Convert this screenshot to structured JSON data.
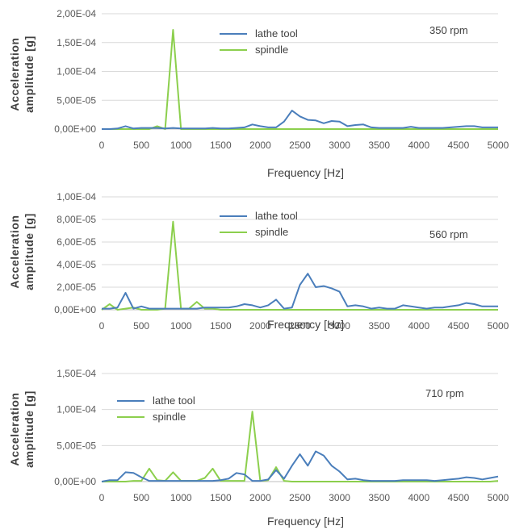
{
  "colors": {
    "lathe_tool": "#4a7ebb",
    "spindle": "#8ccf4d",
    "grid": "#d9d9d9",
    "axis": "#bfbfbf"
  },
  "chart_data": [
    {
      "type": "line",
      "annotation": "350 rpm",
      "xlabel": "Frequency [Hz]",
      "ylabel_line1": "Acceleration",
      "ylabel_line2": "amplitude [g]",
      "xlim": [
        0,
        5000
      ],
      "ylim": [
        0,
        0.0002
      ],
      "xticks": [
        "0",
        "500",
        "1000",
        "1500",
        "2000",
        "2500",
        "3000",
        "3500",
        "4000",
        "4500",
        "5000"
      ],
      "yticks": [
        "0,00E+00",
        "5,00E-05",
        "1,00E-04",
        "1,50E-04",
        "2,00E-04"
      ],
      "legend": {
        "position": "top-center",
        "entries": [
          "lathe tool",
          "spindle"
        ]
      },
      "series": [
        {
          "name": "lathe tool",
          "color": "#4a7ebb",
          "x": [
            0,
            100,
            200,
            300,
            400,
            500,
            600,
            700,
            800,
            900,
            1000,
            1100,
            1200,
            1300,
            1400,
            1500,
            1600,
            1700,
            1800,
            1900,
            2000,
            2100,
            2200,
            2300,
            2400,
            2500,
            2600,
            2700,
            2800,
            2900,
            3000,
            3100,
            3200,
            3300,
            3400,
            3500,
            3600,
            3700,
            3800,
            3900,
            4000,
            4100,
            4200,
            4300,
            4400,
            4500,
            4600,
            4700,
            4800,
            4900,
            5000
          ],
          "y": [
            0,
            0,
            1e-06,
            5e-06,
            1e-06,
            2e-06,
            2e-06,
            2e-06,
            1e-06,
            2e-06,
            1e-06,
            1e-06,
            1e-06,
            1e-06,
            2e-06,
            1e-06,
            1e-06,
            2e-06,
            3e-06,
            8e-06,
            5e-06,
            3e-06,
            3e-06,
            1.3e-05,
            3.2e-05,
            2.2e-05,
            1.6e-05,
            1.5e-05,
            1e-05,
            1.4e-05,
            1.3e-05,
            5e-06,
            7e-06,
            8e-06,
            3e-06,
            2e-06,
            2e-06,
            2e-06,
            2e-06,
            4e-06,
            2e-06,
            2e-06,
            2e-06,
            2e-06,
            3e-06,
            4e-06,
            5e-06,
            5e-06,
            3e-06,
            3e-06,
            3e-06
          ]
        },
        {
          "name": "spindle",
          "color": "#8ccf4d",
          "x": [
            0,
            100,
            200,
            300,
            400,
            500,
            600,
            700,
            800,
            900,
            1000,
            1100,
            1200,
            1300,
            1400,
            1500,
            1600,
            1700,
            1800,
            1900,
            2000,
            2100,
            2200,
            2300,
            2400,
            2500,
            2600,
            2700,
            2800,
            2900,
            3000,
            3100,
            3200,
            3300,
            3400,
            3500,
            3600,
            3700,
            3800,
            3900,
            4000,
            4100,
            4200,
            4300,
            4400,
            4500,
            4600,
            4700,
            4800,
            4900,
            5000
          ],
          "y": [
            0,
            0,
            0,
            0,
            0,
            0,
            0,
            5e-06,
            0,
            0.000172,
            0,
            0,
            0,
            0,
            0,
            0,
            0,
            0,
            0,
            0,
            0,
            0,
            0,
            0,
            0,
            0,
            0,
            0,
            0,
            0,
            0,
            0,
            0,
            0,
            0,
            0,
            0,
            0,
            0,
            0,
            0,
            0,
            0,
            0,
            0,
            0,
            0,
            0,
            0,
            0,
            0
          ]
        }
      ]
    },
    {
      "type": "line",
      "annotation": "560 rpm",
      "xlabel": "Frequency [Hz]",
      "ylabel_line1": "Acceleration",
      "ylabel_line2": "amplitude [g]",
      "xlim": [
        0,
        5000
      ],
      "ylim": [
        0,
        0.0001
      ],
      "xticks": [
        "0",
        "500",
        "1000",
        "1500",
        "2000",
        "2500",
        "3000",
        "3500",
        "4000",
        "4500",
        "5000"
      ],
      "yticks": [
        "0,00E+00",
        "2,00E-05",
        "4,00E-05",
        "6,00E-05",
        "8,00E-05",
        "1,00E-04"
      ],
      "legend": {
        "position": "top-center",
        "entries": [
          "lathe tool",
          "spindle"
        ]
      },
      "series": [
        {
          "name": "lathe tool",
          "color": "#4a7ebb",
          "x": [
            0,
            100,
            200,
            300,
            400,
            500,
            600,
            700,
            800,
            900,
            1000,
            1100,
            1200,
            1300,
            1400,
            1500,
            1600,
            1700,
            1800,
            1900,
            2000,
            2100,
            2200,
            2300,
            2400,
            2500,
            2600,
            2700,
            2800,
            2900,
            3000,
            3100,
            3200,
            3300,
            3400,
            3500,
            3600,
            3700,
            3800,
            3900,
            4000,
            4100,
            4200,
            4300,
            4400,
            4500,
            4600,
            4700,
            4800,
            4900,
            5000
          ],
          "y": [
            1e-06,
            1e-06,
            2e-06,
            1.5e-05,
            1e-06,
            3e-06,
            1e-06,
            1e-06,
            1e-06,
            1e-06,
            1e-06,
            1e-06,
            1e-06,
            2e-06,
            2e-06,
            2e-06,
            2e-06,
            3e-06,
            5e-06,
            4e-06,
            2e-06,
            4e-06,
            9e-06,
            1e-06,
            2e-06,
            2.2e-05,
            3.2e-05,
            2e-05,
            2.1e-05,
            1.9e-05,
            1.6e-05,
            3e-06,
            4e-06,
            3e-06,
            1e-06,
            2e-06,
            1e-06,
            1e-06,
            4e-06,
            3e-06,
            2e-06,
            1e-06,
            2e-06,
            2e-06,
            3e-06,
            4e-06,
            6e-06,
            5e-06,
            3e-06,
            3e-06,
            3e-06
          ]
        },
        {
          "name": "spindle",
          "color": "#8ccf4d",
          "x": [
            0,
            100,
            200,
            300,
            400,
            500,
            600,
            700,
            800,
            900,
            1000,
            1100,
            1200,
            1300,
            1400,
            1500,
            1600,
            1700,
            1800,
            1900,
            2000,
            2100,
            2200,
            2300,
            2400,
            2500,
            2600,
            2700,
            2800,
            2900,
            3000,
            3100,
            3200,
            3300,
            3400,
            3500,
            3600,
            3700,
            3800,
            3900,
            4000,
            4100,
            4200,
            4300,
            4400,
            4500,
            4600,
            4700,
            4800,
            4900,
            5000
          ],
          "y": [
            0,
            5e-06,
            0,
            1e-06,
            2e-06,
            0,
            0,
            0,
            1e-06,
            7.8e-05,
            1e-06,
            1e-06,
            7e-06,
            1e-06,
            1e-06,
            0,
            0,
            0,
            0,
            0,
            0,
            0,
            0,
            0,
            0,
            0,
            0,
            0,
            0,
            0,
            0,
            0,
            0,
            0,
            0,
            0,
            0,
            0,
            0,
            0,
            0,
            0,
            0,
            0,
            0,
            0,
            0,
            0,
            0,
            0,
            0
          ]
        }
      ]
    },
    {
      "type": "line",
      "annotation": "710 rpm",
      "xlabel": "Frequency [Hz]",
      "ylabel_line1": "Acceleration",
      "ylabel_line2": "amplitude [g]",
      "xlim": [
        0,
        5000
      ],
      "ylim": [
        0,
        0.00015
      ],
      "xticks": [
        "0",
        "500",
        "1000",
        "1500",
        "2000",
        "2500",
        "3000",
        "3500",
        "4000",
        "4500",
        "5000"
      ],
      "yticks": [
        "0,00E+00",
        "5,00E-05",
        "1,00E-04",
        "1,50E-04"
      ],
      "legend": {
        "position": "top-left",
        "entries": [
          "lathe tool",
          "spindle"
        ]
      },
      "series": [
        {
          "name": "lathe tool",
          "color": "#4a7ebb",
          "x": [
            0,
            100,
            200,
            300,
            400,
            500,
            600,
            700,
            800,
            900,
            1000,
            1100,
            1200,
            1300,
            1400,
            1500,
            1600,
            1700,
            1800,
            1900,
            2000,
            2100,
            2200,
            2300,
            2400,
            2500,
            2600,
            2700,
            2800,
            2900,
            3000,
            3100,
            3200,
            3300,
            3400,
            3500,
            3600,
            3700,
            3800,
            3900,
            4000,
            4100,
            4200,
            4300,
            4400,
            4500,
            4600,
            4700,
            4800,
            4900,
            5000
          ],
          "y": [
            0,
            2e-06,
            2e-06,
            1.3e-05,
            1.2e-05,
            6e-06,
            1e-06,
            1e-06,
            1e-06,
            1e-06,
            1e-06,
            1e-06,
            1e-06,
            1e-06,
            1e-06,
            2e-06,
            4e-06,
            1.2e-05,
            1e-05,
            1e-06,
            1e-06,
            3e-06,
            1.6e-05,
            4e-06,
            2.2e-05,
            3.8e-05,
            2.2e-05,
            4.2e-05,
            3.6e-05,
            2.2e-05,
            1.4e-05,
            3e-06,
            4e-06,
            2e-06,
            1e-06,
            1e-06,
            1e-06,
            1e-06,
            2e-06,
            2e-06,
            2e-06,
            2e-06,
            1e-06,
            2e-06,
            3e-06,
            4e-06,
            6e-06,
            5e-06,
            3e-06,
            5e-06,
            7e-06
          ]
        },
        {
          "name": "spindle",
          "color": "#8ccf4d",
          "x": [
            0,
            100,
            200,
            300,
            400,
            500,
            600,
            700,
            800,
            900,
            1000,
            1100,
            1200,
            1300,
            1400,
            1500,
            1600,
            1700,
            1800,
            1900,
            2000,
            2100,
            2200,
            2300,
            2400,
            2500,
            2600,
            2700,
            2800,
            2900,
            3000,
            3100,
            3200,
            3300,
            3400,
            3500,
            3600,
            3700,
            3800,
            3900,
            4000,
            4100,
            4200,
            4300,
            4400,
            4500,
            4600,
            4700,
            4800,
            4900,
            5000
          ],
          "y": [
            0,
            0,
            0,
            0,
            1e-06,
            1e-06,
            1.8e-05,
            2e-06,
            1e-06,
            1.3e-05,
            1e-06,
            1e-06,
            1e-06,
            5e-06,
            1.8e-05,
            1e-06,
            1e-06,
            1e-06,
            1e-06,
            9.7e-05,
            1e-06,
            2e-06,
            2e-05,
            1e-06,
            0,
            0,
            0,
            0,
            0,
            0,
            0,
            0,
            0,
            0,
            0,
            0,
            0,
            0,
            0,
            0,
            0,
            0,
            0,
            0,
            0,
            0,
            0,
            0,
            0,
            0,
            1e-06
          ]
        }
      ]
    }
  ]
}
